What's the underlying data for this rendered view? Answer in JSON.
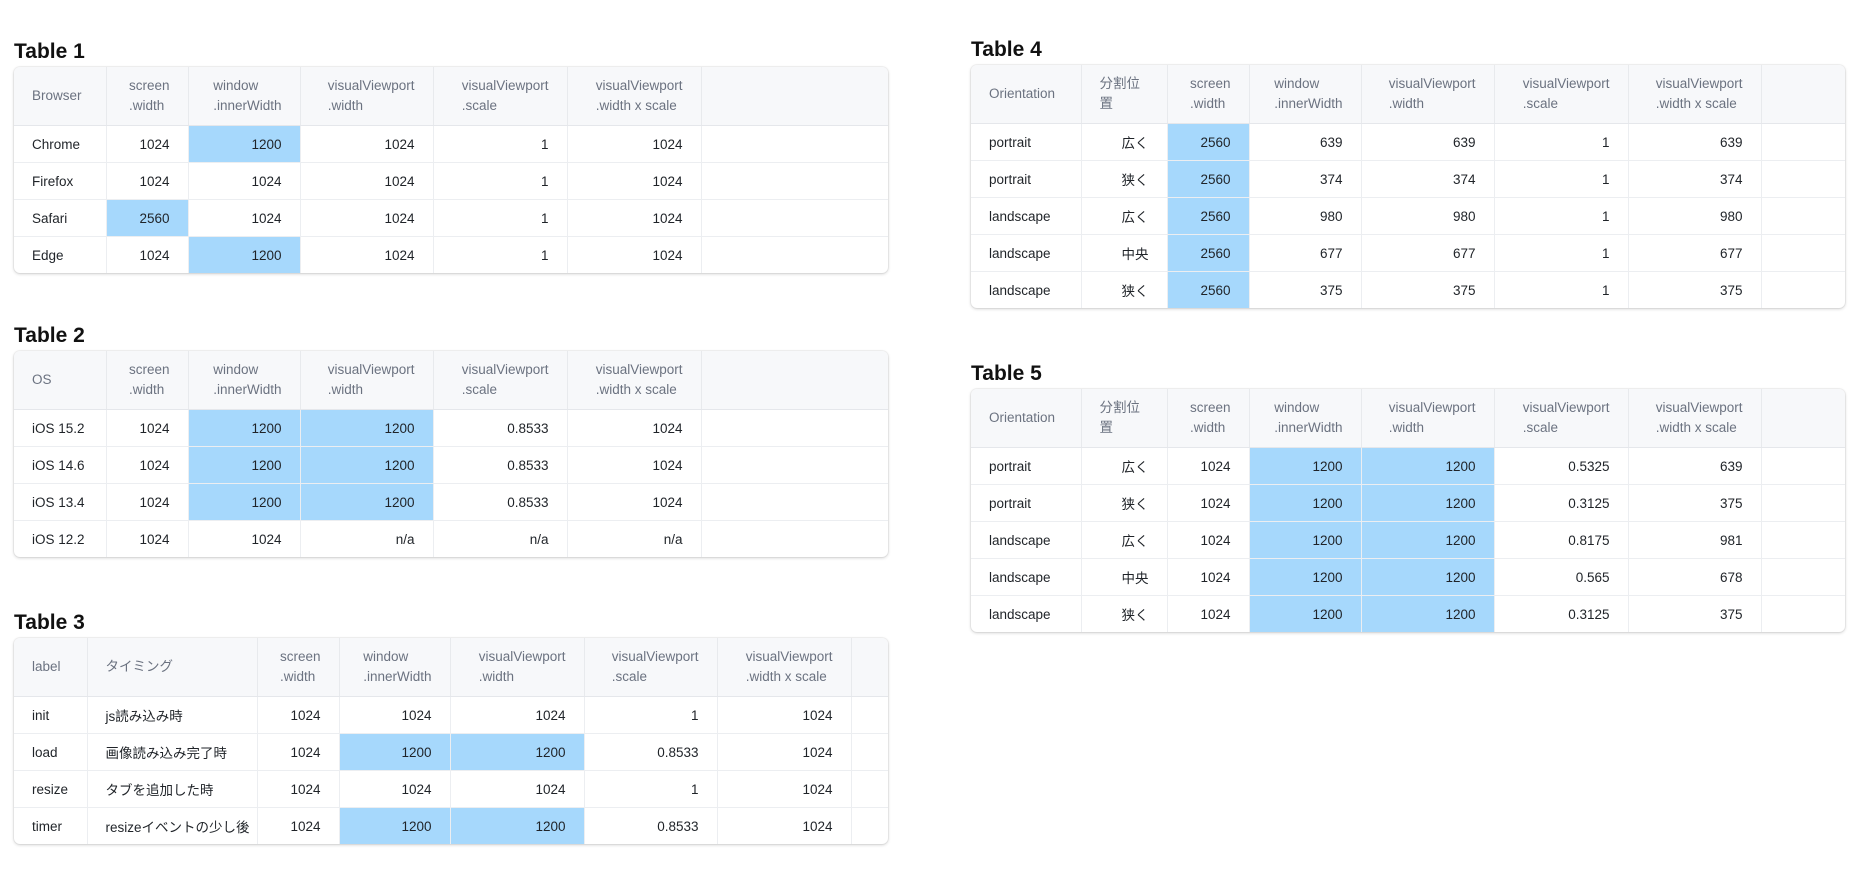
{
  "highlight_color": "#a6d8fc",
  "tables": [
    {
      "title": "Table 1",
      "columns": [
        "Browser",
        "screen\n.width",
        "window\n.innerWidth",
        "visualViewport\n.width",
        "visualViewport\n.scale",
        "visualViewport\n.width x scale"
      ],
      "rows": [
        {
          "cells": [
            "Chrome",
            "1024",
            "1200",
            "1024",
            "1",
            "1024"
          ],
          "highlighted": [
            2
          ]
        },
        {
          "cells": [
            "Firefox",
            "1024",
            "1024",
            "1024",
            "1",
            "1024"
          ],
          "highlighted": []
        },
        {
          "cells": [
            "Safari",
            "2560",
            "1024",
            "1024",
            "1",
            "1024"
          ],
          "highlighted": [
            1
          ]
        },
        {
          "cells": [
            "Edge",
            "1024",
            "1200",
            "1024",
            "1",
            "1024"
          ],
          "highlighted": [
            2
          ]
        }
      ]
    },
    {
      "title": "Table 2",
      "columns": [
        "OS",
        "screen\n.width",
        "window\n.innerWidth",
        "visualViewport\n.width",
        "visualViewport\n.scale",
        "visualViewport\n.width x scale"
      ],
      "rows": [
        {
          "cells": [
            "iOS 15.2",
            "1024",
            "1200",
            "1200",
            "0.8533",
            "1024"
          ],
          "highlighted": [
            2,
            3
          ]
        },
        {
          "cells": [
            "iOS 14.6",
            "1024",
            "1200",
            "1200",
            "0.8533",
            "1024"
          ],
          "highlighted": [
            2,
            3
          ]
        },
        {
          "cells": [
            "iOS 13.4",
            "1024",
            "1200",
            "1200",
            "0.8533",
            "1024"
          ],
          "highlighted": [
            2,
            3
          ]
        },
        {
          "cells": [
            "iOS 12.2",
            "1024",
            "1024",
            "n/a",
            "n/a",
            "n/a"
          ],
          "highlighted": []
        }
      ]
    },
    {
      "title": "Table 3",
      "columns": [
        "label",
        "タイミング",
        "screen\n.width",
        "window\n.innerWidth",
        "visualViewport\n.width",
        "visualViewport\n.scale",
        "visualViewport\n.width x scale"
      ],
      "rows": [
        {
          "cells": [
            "init",
            "js読み込み時",
            "1024",
            "1024",
            "1024",
            "1",
            "1024"
          ],
          "highlighted": []
        },
        {
          "cells": [
            "load",
            "画像読み込み完了時",
            "1024",
            "1200",
            "1200",
            "0.8533",
            "1024"
          ],
          "highlighted": [
            3,
            4
          ]
        },
        {
          "cells": [
            "resize",
            "タブを追加した時",
            "1024",
            "1024",
            "1024",
            "1",
            "1024"
          ],
          "highlighted": []
        },
        {
          "cells": [
            "timer",
            "resizeイベントの少し後",
            "1024",
            "1200",
            "1200",
            "0.8533",
            "1024"
          ],
          "highlighted": [
            3,
            4
          ]
        }
      ]
    },
    {
      "title": "Table 4",
      "columns": [
        "Orientation",
        "分割位置",
        "screen\n.width",
        "window\n.innerWidth",
        "visualViewport\n.width",
        "visualViewport\n.scale",
        "visualViewport\n.width x scale"
      ],
      "rows": [
        {
          "cells": [
            "portrait",
            "広く",
            "2560",
            "639",
            "639",
            "1",
            "639"
          ],
          "highlighted": [
            2
          ]
        },
        {
          "cells": [
            "portrait",
            "狭く",
            "2560",
            "374",
            "374",
            "1",
            "374"
          ],
          "highlighted": [
            2
          ]
        },
        {
          "cells": [
            "landscape",
            "広く",
            "2560",
            "980",
            "980",
            "1",
            "980"
          ],
          "highlighted": [
            2
          ]
        },
        {
          "cells": [
            "landscape",
            "中央",
            "2560",
            "677",
            "677",
            "1",
            "677"
          ],
          "highlighted": [
            2
          ]
        },
        {
          "cells": [
            "landscape",
            "狭く",
            "2560",
            "375",
            "375",
            "1",
            "375"
          ],
          "highlighted": [
            2
          ]
        }
      ]
    },
    {
      "title": "Table 5",
      "columns": [
        "Orientation",
        "分割位置",
        "screen\n.width",
        "window\n.innerWidth",
        "visualViewport\n.width",
        "visualViewport\n.scale",
        "visualViewport\n.width x scale"
      ],
      "rows": [
        {
          "cells": [
            "portrait",
            "広く",
            "1024",
            "1200",
            "1200",
            "0.5325",
            "639"
          ],
          "highlighted": [
            3,
            4
          ]
        },
        {
          "cells": [
            "portrait",
            "狭く",
            "1024",
            "1200",
            "1200",
            "0.3125",
            "375"
          ],
          "highlighted": [
            3,
            4
          ]
        },
        {
          "cells": [
            "landscape",
            "広く",
            "1024",
            "1200",
            "1200",
            "0.8175",
            "981"
          ],
          "highlighted": [
            3,
            4
          ]
        },
        {
          "cells": [
            "landscape",
            "中央",
            "1024",
            "1200",
            "1200",
            "0.565",
            "678"
          ],
          "highlighted": [
            3,
            4
          ]
        },
        {
          "cells": [
            "landscape",
            "狭く",
            "1024",
            "1200",
            "1200",
            "0.3125",
            "375"
          ],
          "highlighted": [
            3,
            4
          ]
        }
      ]
    }
  ]
}
